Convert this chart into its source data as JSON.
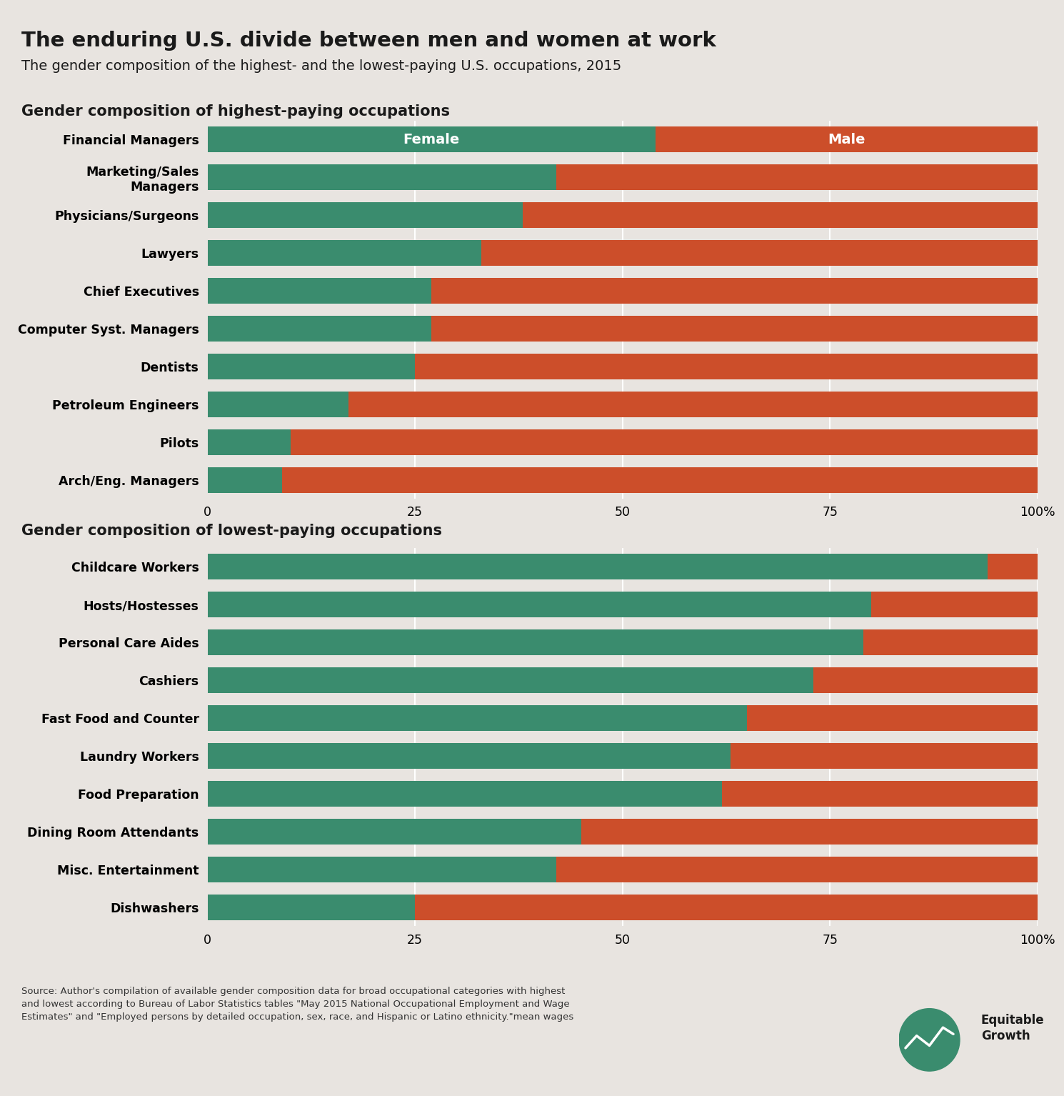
{
  "title": "The enduring U.S. divide between men and women at work",
  "subtitle": "The gender composition of the highest- and the lowest-paying U.S. occupations, 2015",
  "section1_title": "Gender composition of highest-paying occupations",
  "section2_title": "Gender composition of lowest-paying occupations",
  "female_color": "#3a8c6e",
  "male_color": "#cc4e2a",
  "background_color": "#e8e4e0",
  "highest_occupations": [
    "Financial Managers",
    "Marketing/Sales\nManagers",
    "Physicians/Surgeons",
    "Lawyers",
    "Chief Executives",
    "Computer Syst. Managers",
    "Dentists",
    "Petroleum Engineers",
    "Pilots",
    "Arch/Eng. Managers"
  ],
  "highest_female_pct": [
    54,
    42,
    38,
    33,
    27,
    27,
    25,
    17,
    10,
    9
  ],
  "lowest_occupations": [
    "Childcare Workers",
    "Hosts/Hostesses",
    "Personal Care Aides",
    "Cashiers",
    "Fast Food and Counter",
    "Laundry Workers",
    "Food Preparation",
    "Dining Room Attendants",
    "Misc. Entertainment",
    "Dishwashers"
  ],
  "lowest_female_pct": [
    94,
    80,
    79,
    73,
    65,
    63,
    62,
    45,
    42,
    25
  ],
  "source_text": "Source: Author's compilation of available gender composition data for broad occupational categories with highest\nand lowest according to Bureau of Labor Statistics tables \"May 2015 National Occupational Employment and Wage\nEstimates\" and \"Employed persons by detailed occupation, sex, race, and Hispanic or Latino ethnicity.\"mean wages",
  "xticks": [
    0,
    25,
    50,
    75,
    100
  ],
  "xticklabels": [
    "0",
    "25",
    "50",
    "75",
    "100%"
  ]
}
